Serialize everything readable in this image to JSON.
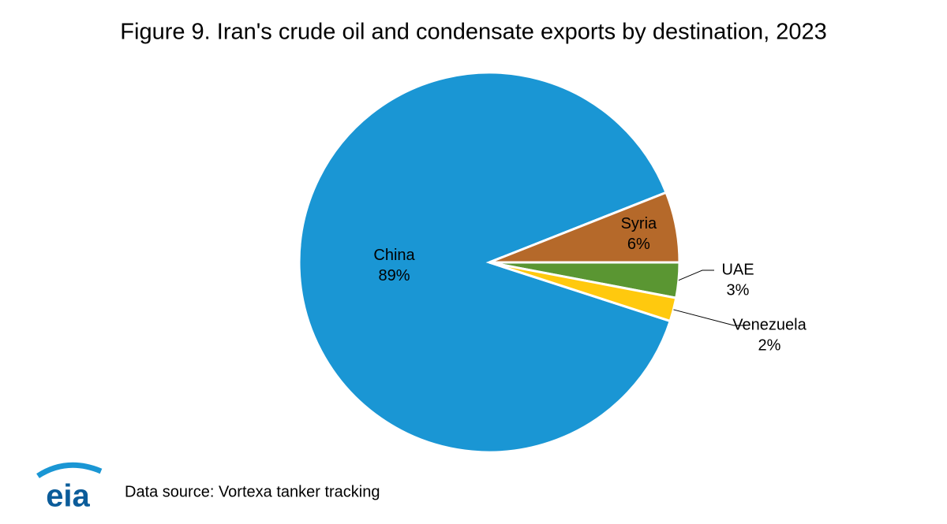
{
  "chart_data": {
    "type": "pie",
    "title": "Figure 9. Iran's crude oil and condensate exports by destination, 2023",
    "categories": [
      "China",
      "Syria",
      "UAE",
      "Venezuela"
    ],
    "values": [
      89,
      6,
      3,
      2
    ],
    "value_labels": [
      "89%",
      "6%",
      "3%",
      "2%"
    ],
    "colors": [
      "#1a96d4",
      "#b5692a",
      "#5a9632",
      "#ffc90e"
    ],
    "source": "Data source: Vortexa tanker tracking",
    "logo": "eia"
  }
}
